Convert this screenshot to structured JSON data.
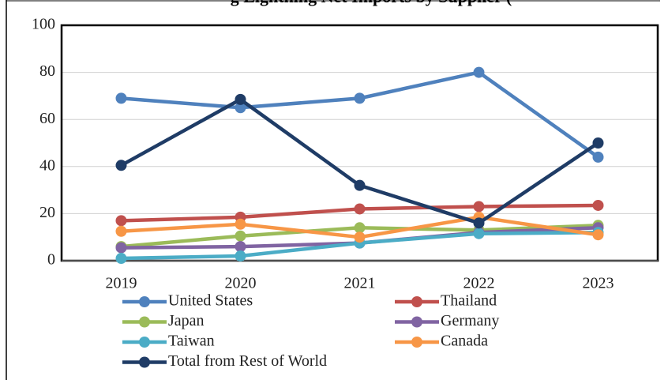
{
  "chart_data": {
    "type": "line",
    "title": "g Lightning Net Imports by Supplier (",
    "categories": [
      "2019",
      "2020",
      "2021",
      "2022",
      "2023"
    ],
    "series": [
      {
        "name": "United States",
        "color": "#4f81bd",
        "values": [
          69,
          65,
          69,
          80,
          44
        ]
      },
      {
        "name": "Thailand",
        "color": "#c0504d",
        "values": [
          17,
          18.5,
          22,
          23,
          23.5
        ]
      },
      {
        "name": "Japan",
        "color": "#9bbb59",
        "values": [
          6,
          10.5,
          14,
          13,
          15
        ]
      },
      {
        "name": "Germany",
        "color": "#8064a2",
        "values": [
          5.5,
          6,
          7.5,
          12,
          14
        ]
      },
      {
        "name": "Taiwan",
        "color": "#4bacc6",
        "values": [
          1,
          2,
          7.5,
          11.5,
          12
        ]
      },
      {
        "name": "Canada",
        "color": "#f79646",
        "values": [
          12.5,
          15.5,
          10,
          18.5,
          11
        ]
      },
      {
        "name": "Total from Rest of World",
        "color": "#1f3c66",
        "values": [
          40.5,
          68.5,
          32,
          16,
          50
        ]
      }
    ],
    "ylim": [
      0,
      100
    ],
    "yticks": [
      0,
      20,
      40,
      60,
      80,
      100
    ],
    "grid": true
  }
}
